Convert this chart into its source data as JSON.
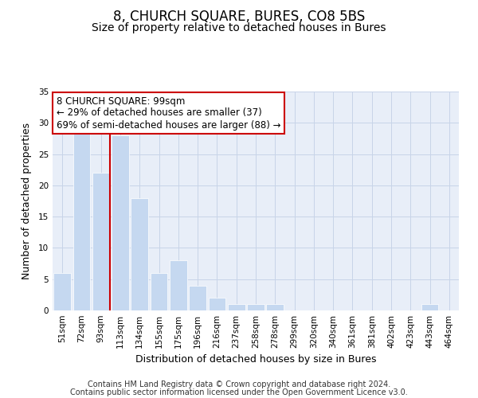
{
  "title": "8, CHURCH SQUARE, BURES, CO8 5BS",
  "subtitle": "Size of property relative to detached houses in Bures",
  "xlabel": "Distribution of detached houses by size in Bures",
  "ylabel": "Number of detached properties",
  "categories": [
    "51sqm",
    "72sqm",
    "93sqm",
    "113sqm",
    "134sqm",
    "155sqm",
    "175sqm",
    "196sqm",
    "216sqm",
    "237sqm",
    "258sqm",
    "278sqm",
    "299sqm",
    "320sqm",
    "340sqm",
    "361sqm",
    "381sqm",
    "402sqm",
    "423sqm",
    "443sqm",
    "464sqm"
  ],
  "bar_heights": [
    6,
    29,
    22,
    28,
    18,
    6,
    8,
    4,
    2,
    1,
    1,
    1,
    0,
    0,
    0,
    0,
    0,
    0,
    0,
    1,
    0
  ],
  "bar_color": "#c5d8f0",
  "red_line_index": 2,
  "red_line_color": "#cc0000",
  "ylim": [
    0,
    35
  ],
  "yticks": [
    0,
    5,
    10,
    15,
    20,
    25,
    30,
    35
  ],
  "grid_color": "#c8d4e8",
  "background_color": "#e8eef8",
  "annotation_text": "8 CHURCH SQUARE: 99sqm\n← 29% of detached houses are smaller (37)\n69% of semi-detached houses are larger (88) →",
  "footer_line1": "Contains HM Land Registry data © Crown copyright and database right 2024.",
  "footer_line2": "Contains public sector information licensed under the Open Government Licence v3.0.",
  "title_fontsize": 12,
  "subtitle_fontsize": 10,
  "axis_label_fontsize": 9,
  "tick_fontsize": 7.5,
  "annotation_fontsize": 8.5,
  "footer_fontsize": 7
}
